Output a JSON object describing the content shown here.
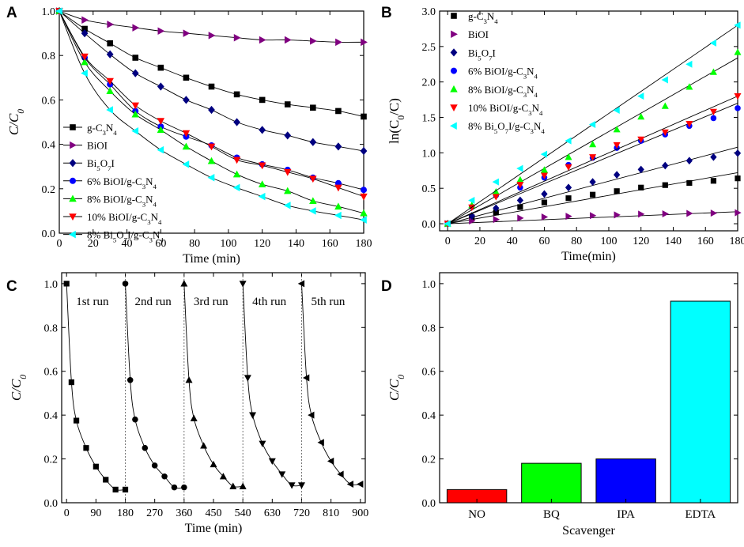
{
  "panels": {
    "A": {
      "label": "A"
    },
    "B": {
      "label": "B"
    },
    "C": {
      "label": "C"
    },
    "D": {
      "label": "D"
    }
  },
  "chart_data": [
    {
      "id": "A",
      "type": "line",
      "title": "",
      "xlabel": "Time (min)",
      "ylabel": "C/C0",
      "ylabel_parts": [
        [
          "C/C",
          ""
        ],
        [
          "0",
          "sub"
        ]
      ],
      "xlim": [
        0,
        180
      ],
      "ylim": [
        0,
        1.0
      ],
      "xticks": [
        0,
        20,
        40,
        60,
        80,
        100,
        120,
        140,
        160,
        180
      ],
      "xtick_labels": [
        "0",
        "20",
        "40",
        "60",
        "80",
        "100",
        "120",
        "140",
        "160",
        "180"
      ],
      "yticks": [
        0,
        0.2,
        0.4,
        0.6,
        0.8,
        1.0
      ],
      "ytick_labels": [
        "0.0",
        "0.2",
        "0.4",
        "0.6",
        "0.8",
        "1.0"
      ],
      "legend_position": "bottom-left",
      "x": [
        0,
        15,
        30,
        45,
        60,
        75,
        90,
        105,
        120,
        135,
        150,
        165,
        180
      ],
      "series": [
        {
          "name": "g-C3N4",
          "label_parts": [
            [
              "g-C",
              ""
            ],
            [
              "3",
              "sub"
            ],
            [
              "N",
              ""
            ],
            [
              "4",
              "sub"
            ]
          ],
          "marker": "square",
          "color": "#000000",
          "values": [
            1.0,
            0.92,
            0.855,
            0.79,
            0.745,
            0.7,
            0.66,
            0.625,
            0.6,
            0.58,
            0.565,
            0.55,
            0.525
          ]
        },
        {
          "name": "BiOI",
          "label_parts": [
            [
              "BiOI",
              ""
            ]
          ],
          "marker": "triangle-right",
          "color": "#800080",
          "values": [
            1.0,
            0.96,
            0.94,
            0.925,
            0.91,
            0.9,
            0.89,
            0.88,
            0.87,
            0.87,
            0.865,
            0.86,
            0.86
          ]
        },
        {
          "name": "Bi5O7I",
          "label_parts": [
            [
              "Bi",
              ""
            ],
            [
              "5",
              "sub"
            ],
            [
              "O",
              ""
            ],
            [
              "7",
              "sub"
            ],
            [
              "I",
              ""
            ]
          ],
          "marker": "diamond",
          "color": "#000080",
          "values": [
            1.0,
            0.9,
            0.805,
            0.72,
            0.66,
            0.6,
            0.555,
            0.5,
            0.465,
            0.44,
            0.41,
            0.39,
            0.37
          ]
        },
        {
          "name": "6% BiOI/g-C3N4",
          "label_parts": [
            [
              "6% BiOI/g-C",
              ""
            ],
            [
              "3",
              "sub"
            ],
            [
              "N",
              ""
            ],
            [
              "4",
              "sub"
            ]
          ],
          "marker": "circle",
          "color": "#0000FF",
          "values": [
            1.0,
            0.79,
            0.67,
            0.55,
            0.48,
            0.435,
            0.395,
            0.34,
            0.31,
            0.285,
            0.25,
            0.225,
            0.195
          ]
        },
        {
          "name": "8% BiOI/g-C3N4",
          "label_parts": [
            [
              "8% BiOI/g-C",
              ""
            ],
            [
              "3",
              "sub"
            ],
            [
              "N",
              ""
            ],
            [
              "4",
              "sub"
            ]
          ],
          "marker": "triangle-up",
          "color": "#00FF00",
          "values": [
            1.0,
            0.77,
            0.64,
            0.535,
            0.465,
            0.39,
            0.325,
            0.265,
            0.22,
            0.19,
            0.145,
            0.12,
            0.09
          ]
        },
        {
          "name": "10% BiOI/g-C3N4",
          "label_parts": [
            [
              "10% BiOI/g-C",
              ""
            ],
            [
              "3",
              "sub"
            ],
            [
              "N",
              ""
            ],
            [
              "4",
              "sub"
            ]
          ],
          "marker": "triangle-down",
          "color": "#FF0000",
          "values": [
            1.0,
            0.795,
            0.685,
            0.575,
            0.505,
            0.45,
            0.39,
            0.33,
            0.305,
            0.275,
            0.245,
            0.205,
            0.165
          ]
        },
        {
          "name": "8% Bi5O7I/g-C3N4",
          "label_parts": [
            [
              "8% Bi",
              ""
            ],
            [
              "5",
              "sub"
            ],
            [
              "O",
              ""
            ],
            [
              "7",
              "sub"
            ],
            [
              "I/g-C",
              ""
            ],
            [
              "3",
              "sub"
            ],
            [
              "N",
              ""
            ],
            [
              "4",
              "sub"
            ]
          ],
          "marker": "triangle-left",
          "color": "#00FFFF",
          "values": [
            1.0,
            0.72,
            0.555,
            0.46,
            0.375,
            0.31,
            0.25,
            0.205,
            0.165,
            0.125,
            0.1,
            0.08,
            0.06
          ]
        }
      ]
    },
    {
      "id": "B",
      "type": "scatter",
      "title": "",
      "xlabel": "Time(min)",
      "ylabel": "ln(C0/C)",
      "ylabel_parts": [
        [
          "ln(C",
          ""
        ],
        [
          "0",
          "sub"
        ],
        [
          "/C)",
          ""
        ]
      ],
      "xlim": [
        -5,
        180
      ],
      "ylim": [
        -0.1,
        3.0
      ],
      "xticks": [
        0,
        20,
        40,
        60,
        80,
        100,
        120,
        140,
        160,
        180
      ],
      "xtick_labels": [
        "0",
        "20",
        "40",
        "60",
        "80",
        "100",
        "120",
        "140",
        "160",
        "180"
      ],
      "yticks": [
        0,
        0.5,
        1.0,
        1.5,
        2.0,
        2.5,
        3.0
      ],
      "ytick_labels": [
        "0.0",
        "0.5",
        "1.0",
        "1.5",
        "2.0",
        "2.5",
        "3.0"
      ],
      "legend_position": "top-left",
      "x": [
        0,
        15,
        30,
        45,
        60,
        75,
        90,
        105,
        120,
        135,
        150,
        165,
        180
      ],
      "series": [
        {
          "name": "g-C3N4",
          "label_parts": [
            [
              "g-C",
              ""
            ],
            [
              "3",
              "sub"
            ],
            [
              "N",
              ""
            ],
            [
              "4",
              "sub"
            ]
          ],
          "marker": "square",
          "color": "#000000",
          "values": [
            0,
            0.09,
            0.16,
            0.235,
            0.3,
            0.36,
            0.41,
            0.46,
            0.51,
            0.545,
            0.575,
            0.605,
            0.64
          ],
          "fit": [
            0,
            0.72
          ]
        },
        {
          "name": "BiOI",
          "label_parts": [
            [
              "BiOI",
              ""
            ]
          ],
          "marker": "triangle-right",
          "color": "#800080",
          "values": [
            0,
            0.04,
            0.06,
            0.08,
            0.095,
            0.105,
            0.115,
            0.125,
            0.135,
            0.14,
            0.145,
            0.15,
            0.155
          ],
          "fit": [
            0,
            0.17
          ]
        },
        {
          "name": "Bi5O7I",
          "label_parts": [
            [
              "Bi",
              ""
            ],
            [
              "5",
              "sub"
            ],
            [
              "O",
              ""
            ],
            [
              "7",
              "sub"
            ],
            [
              "I",
              ""
            ]
          ],
          "marker": "diamond",
          "color": "#000080",
          "values": [
            0,
            0.11,
            0.22,
            0.33,
            0.42,
            0.51,
            0.59,
            0.69,
            0.765,
            0.82,
            0.89,
            0.94,
            0.995
          ],
          "fit": [
            0,
            1.08
          ]
        },
        {
          "name": "6% BiOI/g-C3N4",
          "label_parts": [
            [
              "6% BiOI/g-C",
              ""
            ],
            [
              "3",
              "sub"
            ],
            [
              "N",
              ""
            ],
            [
              "4",
              "sub"
            ]
          ],
          "marker": "circle",
          "color": "#0000FF",
          "values": [
            0,
            0.24,
            0.4,
            0.51,
            0.65,
            0.83,
            0.93,
            1.07,
            1.17,
            1.26,
            1.38,
            1.49,
            1.63
          ],
          "fit": [
            0,
            1.7
          ]
        },
        {
          "name": "8% BiOI/g-C3N4",
          "label_parts": [
            [
              "8% BiOI/g-C",
              ""
            ],
            [
              "3",
              "sub"
            ],
            [
              "N",
              ""
            ],
            [
              "4",
              "sub"
            ]
          ],
          "marker": "triangle-up",
          "color": "#00FF00",
          "values": [
            0,
            0.26,
            0.45,
            0.62,
            0.76,
            0.94,
            1.12,
            1.33,
            1.51,
            1.66,
            1.93,
            2.14,
            2.42
          ],
          "fit": [
            0,
            2.34
          ]
        },
        {
          "name": "10% BiOI/g-C3N4",
          "label_parts": [
            [
              "10% BiOI/g-C",
              ""
            ],
            [
              "3",
              "sub"
            ],
            [
              "N",
              ""
            ],
            [
              "4",
              "sub"
            ]
          ],
          "marker": "triangle-down",
          "color": "#FF0000",
          "values": [
            0,
            0.23,
            0.38,
            0.55,
            0.68,
            0.8,
            0.94,
            1.11,
            1.19,
            1.29,
            1.41,
            1.58,
            1.8
          ],
          "fit": [
            0,
            1.8
          ]
        },
        {
          "name": "8% Bi5O7I/g-C3N4",
          "label_parts": [
            [
              "8% Bi",
              ""
            ],
            [
              "5",
              "sub"
            ],
            [
              "O",
              ""
            ],
            [
              "7",
              "sub"
            ],
            [
              "I/g-C",
              ""
            ],
            [
              "3",
              "sub"
            ],
            [
              "N",
              ""
            ],
            [
              "4",
              "sub"
            ]
          ],
          "marker": "triangle-left",
          "color": "#00FFFF",
          "values": [
            0,
            0.33,
            0.59,
            0.78,
            0.98,
            1.17,
            1.4,
            1.6,
            1.8,
            2.03,
            2.25,
            2.55,
            2.8
          ],
          "fit": [
            0,
            2.8
          ]
        }
      ]
    },
    {
      "id": "C",
      "type": "line",
      "title": "",
      "xlabel": "Time (min)",
      "ylabel": "C/C0",
      "ylabel_parts": [
        [
          "C/C",
          ""
        ],
        [
          "0",
          "sub"
        ]
      ],
      "xlim": [
        -15,
        915
      ],
      "ylim": [
        0,
        1.05
      ],
      "xticks": [
        0,
        90,
        180,
        270,
        360,
        450,
        540,
        630,
        720,
        810,
        900
      ],
      "xtick_labels": [
        "0",
        "90",
        "180",
        "270",
        "360",
        "450",
        "540",
        "630",
        "720",
        "810",
        "900"
      ],
      "yticks": [
        0,
        0.2,
        0.4,
        0.6,
        0.8,
        1.0
      ],
      "ytick_labels": [
        "0.0",
        "0.2",
        "0.4",
        "0.6",
        "0.8",
        "1.0"
      ],
      "run_separators": [
        180,
        360,
        540,
        720
      ],
      "series": [
        {
          "name": "1st run",
          "marker": "square",
          "x": [
            0,
            15,
            30,
            60,
            90,
            120,
            150,
            180
          ],
          "values": [
            1.0,
            0.55,
            0.375,
            0.25,
            0.165,
            0.105,
            0.06,
            0.06
          ]
        },
        {
          "name": "2nd run",
          "marker": "circle",
          "x": [
            180,
            195,
            210,
            240,
            270,
            300,
            330,
            360
          ],
          "values": [
            1.0,
            0.56,
            0.38,
            0.25,
            0.17,
            0.12,
            0.07,
            0.07
          ]
        },
        {
          "name": "3rd run",
          "marker": "triangle-up",
          "x": [
            360,
            375,
            390,
            420,
            450,
            480,
            510,
            540
          ],
          "values": [
            1.0,
            0.56,
            0.385,
            0.26,
            0.175,
            0.12,
            0.075,
            0.075
          ]
        },
        {
          "name": "4th run",
          "marker": "triangle-down",
          "x": [
            540,
            555,
            570,
            600,
            630,
            660,
            690,
            720
          ],
          "values": [
            1.0,
            0.57,
            0.4,
            0.27,
            0.19,
            0.13,
            0.08,
            0.08
          ]
        },
        {
          "name": "5th run",
          "marker": "triangle-left",
          "x": [
            720,
            735,
            750,
            780,
            810,
            840,
            870,
            900
          ],
          "values": [
            1.0,
            0.57,
            0.4,
            0.275,
            0.19,
            0.13,
            0.085,
            0.085
          ]
        }
      ]
    },
    {
      "id": "D",
      "type": "bar",
      "title": "",
      "xlabel": "Scavenger",
      "ylabel": "C/C0",
      "ylabel_parts": [
        [
          "C/C",
          ""
        ],
        [
          "0",
          "sub"
        ]
      ],
      "ylim": [
        0,
        1.05
      ],
      "yticks": [
        0,
        0.2,
        0.4,
        0.6,
        0.8,
        1.0
      ],
      "ytick_labels": [
        "0.0",
        "0.2",
        "0.4",
        "0.6",
        "0.8",
        "1.0"
      ],
      "categories": [
        "NO",
        "BQ",
        "IPA",
        "EDTA"
      ],
      "values": [
        0.06,
        0.18,
        0.2,
        0.92
      ],
      "colors": [
        "#FF0000",
        "#00FF00",
        "#0000FF",
        "#00FFFF"
      ]
    }
  ]
}
